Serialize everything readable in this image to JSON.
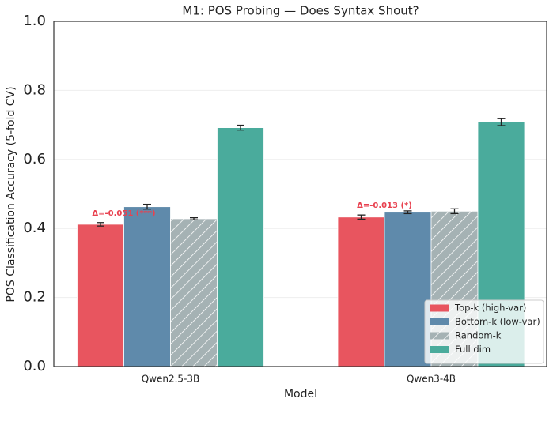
{
  "chart_data": {
    "type": "bar",
    "title": "M1: POS Probing — Does Syntax Shout?",
    "xlabel": "Model",
    "ylabel": "POS Classification Accuracy (5-fold CV)",
    "categories": [
      "Qwen2.5-3B",
      "Qwen3-4B"
    ],
    "series": [
      {
        "name": "Top-k (high-var)",
        "color": "#e8555f",
        "values": [
          0.412,
          0.433
        ],
        "errors": [
          0.005,
          0.006
        ]
      },
      {
        "name": "Bottom-k (low-var)",
        "color": "#5f8aab",
        "values": [
          0.463,
          0.447
        ],
        "errors": [
          0.007,
          0.004
        ]
      },
      {
        "name": "Random-k",
        "color": "#a5b2b4",
        "hatch": true,
        "values": [
          0.428,
          0.45
        ],
        "errors": [
          0.003,
          0.007
        ]
      },
      {
        "name": "Full dim",
        "color": "#4aab9c",
        "values": [
          0.692,
          0.708
        ],
        "errors": [
          0.007,
          0.01
        ]
      }
    ],
    "annotations": [
      "Δ=-0.051 (***)",
      "Δ=-0.013 (*)"
    ],
    "annotation_color": "#e8414f",
    "ylim": [
      0,
      1
    ],
    "yticks": [
      {
        "value": 0,
        "label": "0.0"
      },
      {
        "value": 0.2,
        "label": "0.2"
      },
      {
        "value": 0.4,
        "label": "0.4"
      },
      {
        "value": 0.6,
        "label": "0.6"
      },
      {
        "value": 0.8,
        "label": "0.8"
      },
      {
        "value": 1,
        "label": "1.0"
      }
    ],
    "grid": true,
    "legend": "lower right"
  }
}
